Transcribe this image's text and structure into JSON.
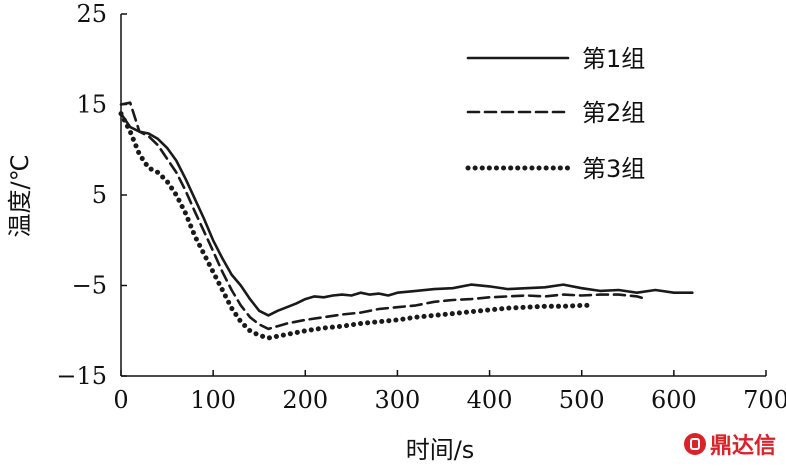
{
  "chart_data": {
    "type": "line",
    "xlabel": "时间/s",
    "ylabel": "温度/℃",
    "xlim": [
      0,
      700
    ],
    "ylim": [
      -15,
      25
    ],
    "xticks": [
      0,
      100,
      200,
      300,
      400,
      500,
      600,
      700
    ],
    "yticks": [
      -15,
      -5,
      5,
      15,
      25
    ],
    "ytick_labels": [
      "−15",
      "−5",
      "5",
      "15",
      "25"
    ],
    "legend_position": "top-right",
    "grid": false,
    "series": [
      {
        "name": "第1组",
        "style": "solid",
        "x": [
          0,
          10,
          20,
          30,
          40,
          50,
          60,
          70,
          80,
          90,
          100,
          110,
          120,
          130,
          140,
          150,
          160,
          170,
          180,
          190,
          200,
          210,
          220,
          230,
          240,
          250,
          260,
          270,
          280,
          290,
          300,
          320,
          340,
          360,
          380,
          400,
          420,
          440,
          460,
          480,
          500,
          520,
          540,
          560,
          580,
          600,
          620
        ],
        "y": [
          14.0,
          12.5,
          12.0,
          11.8,
          11.2,
          10.2,
          8.8,
          6.8,
          4.6,
          2.4,
          0.0,
          -2.0,
          -3.8,
          -5.0,
          -6.5,
          -7.8,
          -8.3,
          -7.8,
          -7.4,
          -7.0,
          -6.5,
          -6.2,
          -6.3,
          -6.1,
          -6.0,
          -6.1,
          -5.8,
          -6.0,
          -5.9,
          -6.1,
          -5.8,
          -5.6,
          -5.4,
          -5.3,
          -4.9,
          -5.1,
          -5.4,
          -5.3,
          -5.2,
          -4.9,
          -5.3,
          -5.6,
          -5.5,
          -5.8,
          -5.5,
          -5.8,
          -5.8
        ]
      },
      {
        "name": "第2组",
        "style": "dashed",
        "x": [
          0,
          10,
          20,
          30,
          40,
          50,
          60,
          70,
          80,
          90,
          100,
          110,
          120,
          130,
          140,
          150,
          160,
          170,
          180,
          190,
          200,
          220,
          240,
          260,
          280,
          300,
          320,
          340,
          360,
          380,
          400,
          420,
          440,
          460,
          480,
          500,
          520,
          540,
          560,
          570
        ],
        "y": [
          15.0,
          15.2,
          12.0,
          11.5,
          10.5,
          9.0,
          7.5,
          5.5,
          3.2,
          1.0,
          -1.2,
          -3.5,
          -5.5,
          -7.2,
          -8.5,
          -9.3,
          -9.8,
          -9.5,
          -9.2,
          -9.0,
          -8.8,
          -8.5,
          -8.2,
          -8.0,
          -7.6,
          -7.4,
          -7.2,
          -6.8,
          -6.6,
          -6.5,
          -6.3,
          -6.2,
          -6.1,
          -6.2,
          -6.0,
          -6.1,
          -6.0,
          -6.0,
          -6.2,
          -6.5
        ]
      },
      {
        "name": "第3组",
        "style": "dotted",
        "x": [
          0,
          10,
          20,
          30,
          40,
          50,
          60,
          70,
          80,
          90,
          100,
          110,
          120,
          130,
          140,
          150,
          160,
          170,
          180,
          190,
          200,
          220,
          240,
          260,
          280,
          300,
          320,
          340,
          360,
          380,
          400,
          420,
          440,
          460,
          480,
          500,
          510
        ],
        "y": [
          14.0,
          12.0,
          9.5,
          8.0,
          7.5,
          6.5,
          5.0,
          3.0,
          0.5,
          -1.5,
          -3.5,
          -5.5,
          -7.5,
          -9.0,
          -10.0,
          -10.5,
          -10.8,
          -10.6,
          -10.4,
          -10.2,
          -10.0,
          -9.7,
          -9.5,
          -9.2,
          -9.0,
          -8.8,
          -8.5,
          -8.3,
          -8.1,
          -7.9,
          -7.7,
          -7.5,
          -7.4,
          -7.3,
          -7.3,
          -7.2,
          -7.2
        ]
      }
    ]
  },
  "watermark": {
    "text": "鼎达信",
    "color": "#d8232a"
  }
}
